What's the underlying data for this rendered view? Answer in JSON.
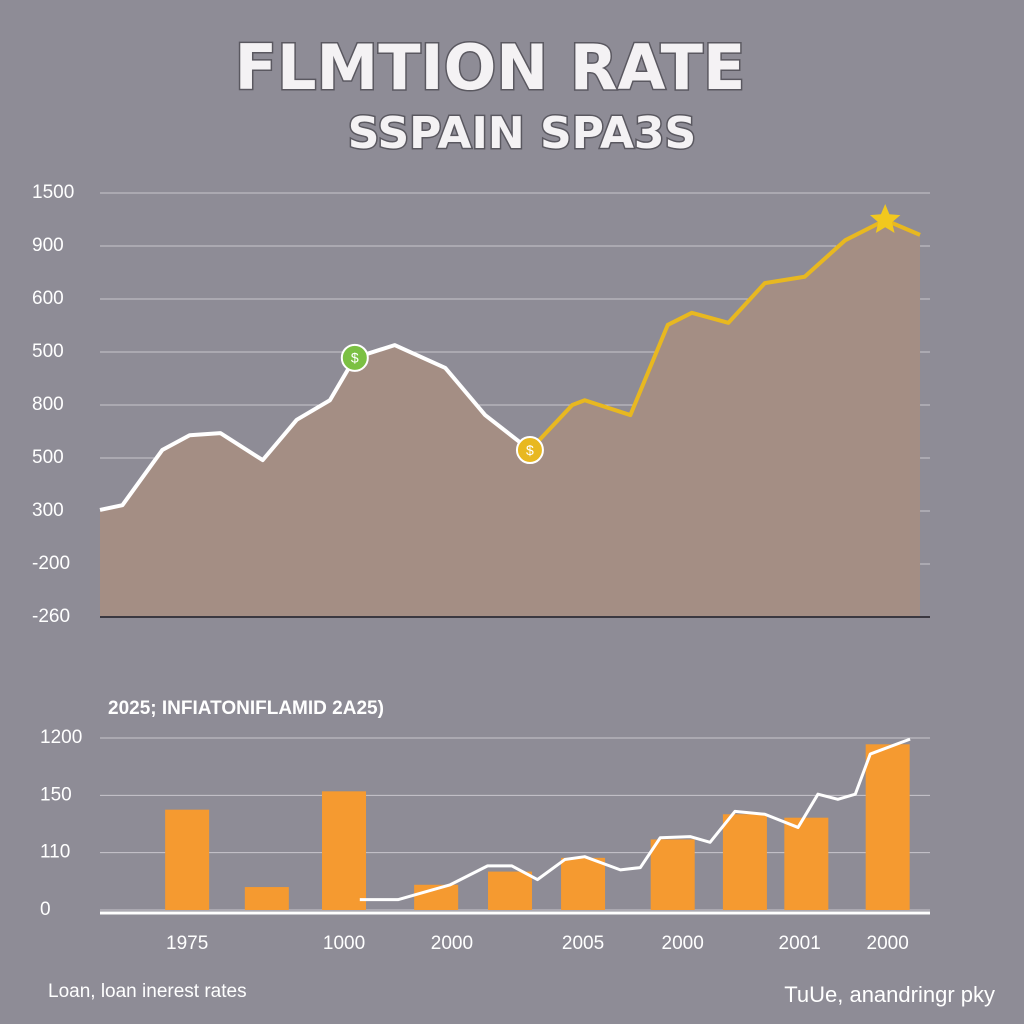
{
  "title": "FLMTION RATE",
  "subtitle": "SSPAIN SPA3S",
  "chart_data": [
    {
      "type": "area",
      "xlim": [
        0,
        100
      ],
      "ylim": [
        0,
        8
      ],
      "yticks": [
        {
          "value": 8,
          "label": "1500"
        },
        {
          "value": 7,
          "label": "900"
        },
        {
          "value": 6,
          "label": "600"
        },
        {
          "value": 5,
          "label": "500"
        },
        {
          "value": 4,
          "label": "800"
        },
        {
          "value": 3,
          "label": "500"
        },
        {
          "value": 2,
          "label": "300"
        },
        {
          "value": 1,
          "label": "-200"
        },
        {
          "value": 0,
          "label": "-260"
        }
      ],
      "grid": true,
      "x": [
        0,
        2.7,
        7.5,
        10.8,
        14.5,
        19.6,
        23.7,
        27.7,
        30.7,
        35.5,
        41.6,
        46.4,
        51.8,
        56.9,
        58.4,
        63.9,
        68.4,
        71.3,
        75.7,
        80.1,
        84.9,
        89.8,
        94.6,
        98.8
      ],
      "values": [
        2.02,
        2.11,
        3.15,
        3.43,
        3.47,
        2.96,
        3.72,
        4.09,
        4.89,
        5.13,
        4.7,
        3.81,
        3.15,
        4.0,
        4.09,
        3.81,
        5.51,
        5.74,
        5.55,
        6.3,
        6.42,
        7.11,
        7.49,
        7.21
      ],
      "color": "#ffffff",
      "fill": "#a48e84",
      "highlight": {
        "from_index": 12,
        "color": "#e8b820"
      },
      "markers": [
        {
          "index": 8,
          "label": "$",
          "color": "#7bc043"
        },
        {
          "index": 12,
          "label": "$",
          "color": "#e8b820"
        },
        {
          "index": 22,
          "shape": "star",
          "color": "#f2c81e"
        }
      ]
    },
    {
      "type": "bar",
      "title": "2025; INFIATONIFLAMID 2A25)",
      "xlim": [
        0,
        100
      ],
      "ylim": [
        0,
        3
      ],
      "yticks": [
        {
          "value": 3,
          "label": "1200"
        },
        {
          "value": 2,
          "label": "150"
        },
        {
          "value": 1,
          "label": "110"
        },
        0
      ],
      "xticks": [
        {
          "value": 10.5,
          "label": "1975"
        },
        {
          "value": 29.4,
          "label": "1000"
        },
        {
          "value": 42.4,
          "label": "2000"
        },
        {
          "value": 58.2,
          "label": "2005"
        },
        {
          "value": 70.2,
          "label": "2000"
        },
        {
          "value": 84.3,
          "label": "2001"
        },
        {
          "value": 94.9,
          "label": "2000"
        }
      ],
      "grid": true,
      "x": [
        10.5,
        20.1,
        29.4,
        40.5,
        49.4,
        58.2,
        69.0,
        77.7,
        85.1,
        94.9
      ],
      "values": [
        1.75,
        0.4,
        2.07,
        0.44,
        0.67,
        0.91,
        1.23,
        1.67,
        1.61,
        2.89
      ],
      "color": "#f59a30",
      "line": {
        "color": "#ffffff",
        "x": [
          31.3,
          35.9,
          42.2,
          46.7,
          49.6,
          52.7,
          56.0,
          58.4,
          62.7,
          65.1,
          67.5,
          71.1,
          73.5,
          76.5,
          80.1,
          84.1,
          86.5,
          88.9,
          91.0,
          92.8,
          97.6
        ],
        "values": [
          0.18,
          0.18,
          0.44,
          0.77,
          0.77,
          0.53,
          0.88,
          0.93,
          0.7,
          0.74,
          1.26,
          1.28,
          1.18,
          1.72,
          1.67,
          1.44,
          2.02,
          1.93,
          2.02,
          2.72,
          2.98
        ]
      }
    }
  ],
  "footer": {
    "left": "Loan, loan inerest rates",
    "right": "TuUe, anandringr pky"
  }
}
